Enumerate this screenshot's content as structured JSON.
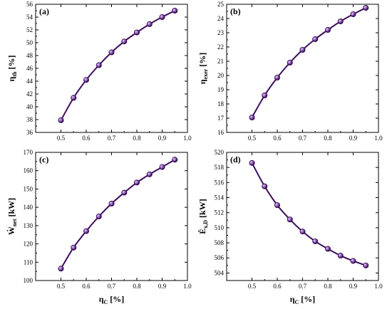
{
  "colors": {
    "line": "#3d0d5e",
    "marker_fill": "#8a4fb8",
    "marker_edge": "#2a0845"
  },
  "chart_data": [
    {
      "panel": "(a)",
      "type": "line",
      "x": [
        0.5,
        0.55,
        0.6,
        0.65,
        0.7,
        0.75,
        0.8,
        0.85,
        0.9,
        0.95
      ],
      "values": [
        37.9,
        41.4,
        44.2,
        46.5,
        48.5,
        50.2,
        51.6,
        52.9,
        54.0,
        55.0
      ],
      "xlim": [
        0.4,
        1.0
      ],
      "ylim": [
        36,
        56
      ],
      "xticks": [
        0.5,
        0.6,
        0.7,
        0.8,
        0.9,
        1.0
      ],
      "yticks": [
        36,
        38,
        40,
        42,
        44,
        46,
        48,
        50,
        52,
        54,
        56
      ],
      "x_tick_labels": [
        "0.5",
        "0.6",
        "0.7",
        "0.8",
        "0.9",
        "1.0"
      ],
      "y_tick_labels": [
        "36",
        "38",
        "40",
        "42",
        "44",
        "46",
        "48",
        "50",
        "52",
        "54",
        "56"
      ],
      "ylabel_main": "η",
      "ylabel_sub": "th",
      "ylabel_unit": " [%]",
      "xlabel_main": "",
      "xlabel_sub": "",
      "xlabel_unit": ""
    },
    {
      "panel": "(b)",
      "type": "line",
      "x": [
        0.5,
        0.55,
        0.6,
        0.65,
        0.7,
        0.75,
        0.8,
        0.85,
        0.9,
        0.95
      ],
      "values": [
        17.05,
        18.6,
        19.85,
        20.9,
        21.8,
        22.55,
        23.2,
        23.8,
        24.3,
        24.75
      ],
      "xlim": [
        0.4,
        1.0
      ],
      "ylim": [
        16,
        25
      ],
      "xticks": [
        0.5,
        0.6,
        0.7,
        0.8,
        0.9,
        1.0
      ],
      "yticks": [
        16,
        17,
        18,
        19,
        20,
        21,
        22,
        23,
        24,
        25
      ],
      "x_tick_labels": [
        "0.5",
        "0.6",
        "0.7",
        "0.8",
        "0.9",
        "1.0"
      ],
      "y_tick_labels": [
        "16",
        "17",
        "18",
        "19",
        "20",
        "21",
        "22",
        "23",
        "24",
        "25"
      ],
      "ylabel_main": "η",
      "ylabel_sub": "exer",
      "ylabel_unit": " [%]",
      "xlabel_main": "",
      "xlabel_sub": "",
      "xlabel_unit": ""
    },
    {
      "panel": "(c)",
      "type": "line",
      "x": [
        0.5,
        0.55,
        0.6,
        0.65,
        0.7,
        0.75,
        0.8,
        0.85,
        0.9,
        0.95
      ],
      "values": [
        106.5,
        118,
        127,
        135,
        142,
        148,
        153.5,
        158,
        162,
        166
      ],
      "xlim": [
        0.4,
        1.0
      ],
      "ylim": [
        100,
        170
      ],
      "xticks": [
        0.5,
        0.6,
        0.7,
        0.8,
        0.9,
        1.0
      ],
      "yticks": [
        100,
        110,
        120,
        130,
        140,
        150,
        160,
        170
      ],
      "x_tick_labels": [
        "0.5",
        "0.6",
        "0.7",
        "0.8",
        "0.9",
        "1.0"
      ],
      "y_tick_labels": [
        "100",
        "110",
        "120",
        "130",
        "140",
        "150",
        "160",
        "170"
      ],
      "ylabel_main": "Ẇ",
      "ylabel_sub": "net",
      "ylabel_unit": " [kW]",
      "xlabel_main": "η",
      "xlabel_sub": "C",
      "xlabel_unit": " [%]"
    },
    {
      "panel": "(d)",
      "type": "line",
      "x": [
        0.5,
        0.55,
        0.6,
        0.65,
        0.7,
        0.75,
        0.8,
        0.85,
        0.9,
        0.95
      ],
      "values": [
        518.6,
        515.5,
        513.0,
        511.1,
        509.5,
        508.2,
        507.2,
        506.3,
        505.6,
        505.0
      ],
      "xlim": [
        0.4,
        1.0
      ],
      "ylim": [
        503,
        520
      ],
      "xticks": [
        0.5,
        0.6,
        0.7,
        0.8,
        0.9,
        1.0
      ],
      "yticks": [
        504,
        506,
        508,
        510,
        512,
        514,
        516,
        518,
        520
      ],
      "x_tick_labels": [
        "0.5",
        "0.6",
        "0.7",
        "0.8",
        "0.9",
        "1.0"
      ],
      "y_tick_labels": [
        "504",
        "506",
        "508",
        "510",
        "512",
        "514",
        "516",
        "518",
        "520"
      ],
      "ylabel_main": "Ė",
      "ylabel_sub": "x,D",
      "ylabel_unit": " [kW]",
      "xlabel_main": "η",
      "xlabel_sub": "C",
      "xlabel_unit": " [%]"
    }
  ]
}
